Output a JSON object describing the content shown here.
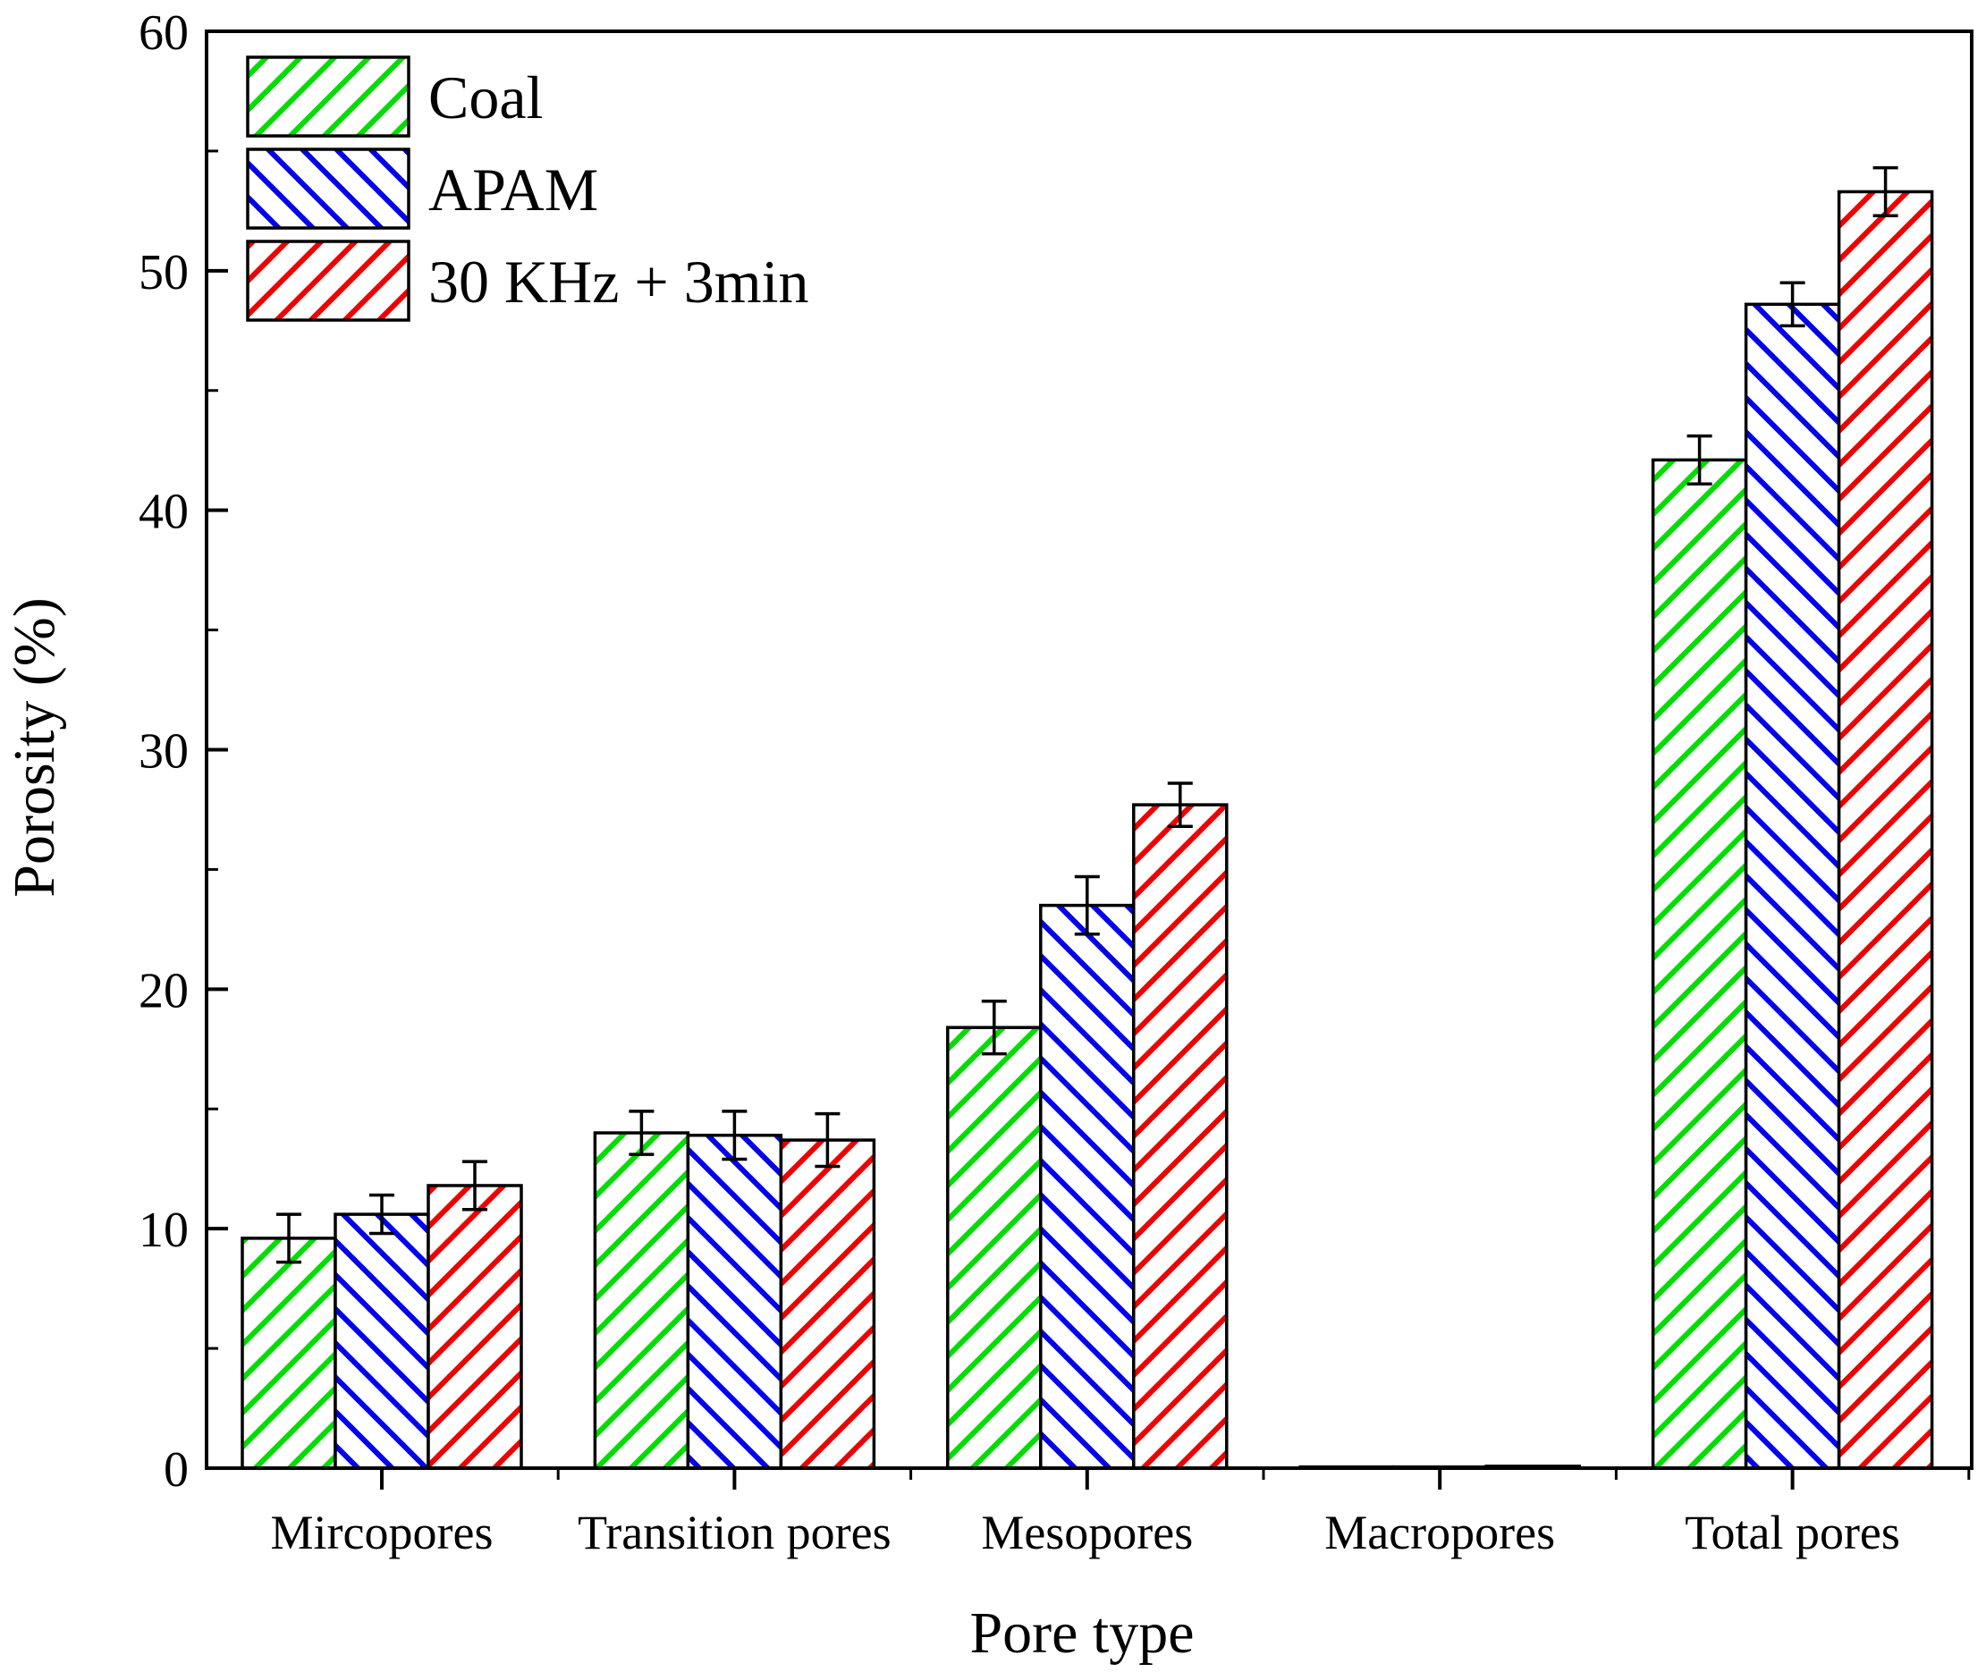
{
  "chart_data": {
    "type": "bar",
    "title": "",
    "xlabel": "Pore type",
    "ylabel": "Porosity (%)",
    "ylim": [
      0,
      60
    ],
    "yticks": [
      0,
      10,
      20,
      30,
      40,
      50,
      60
    ],
    "grid": false,
    "legend_position": "top-left",
    "categories": [
      "Mircopores",
      "Transition pores",
      "Mesopores",
      "Macropores",
      "Total pores"
    ],
    "series": [
      {
        "name": "Coal",
        "color": "#00dd00",
        "hatch": "forward-diagonal",
        "values": [
          9.6,
          14.0,
          18.4,
          0.05,
          42.1
        ],
        "errors": [
          1.0,
          0.9,
          1.1,
          0.0,
          1.0
        ]
      },
      {
        "name": "APAM",
        "color": "#0000ee",
        "hatch": "backward-diagonal",
        "values": [
          10.6,
          13.9,
          23.5,
          0.05,
          48.6
        ],
        "errors": [
          0.8,
          1.0,
          1.2,
          0.0,
          0.9
        ]
      },
      {
        "name": "30 KHz + 3min",
        "color": "#ee0000",
        "hatch": "forward-diagonal",
        "values": [
          11.8,
          13.7,
          27.7,
          0.08,
          53.3
        ],
        "errors": [
          1.0,
          1.1,
          0.9,
          0.0,
          1.0
        ]
      }
    ]
  }
}
